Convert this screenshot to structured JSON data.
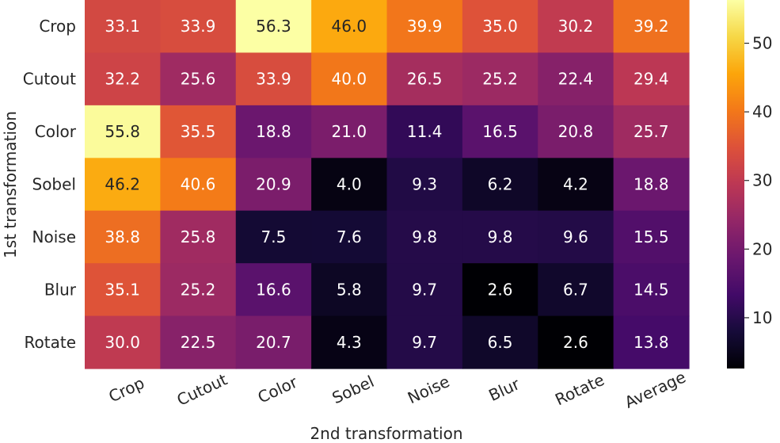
{
  "chart_data": {
    "type": "heatmap",
    "title": "",
    "xlabel": "2nd transformation",
    "ylabel": "1st transformation",
    "x_categories": [
      "Crop",
      "Cutout",
      "Color",
      "Sobel",
      "Noise",
      "Blur",
      "Rotate",
      "Average"
    ],
    "y_categories": [
      "Crop",
      "Cutout",
      "Color",
      "Sobel",
      "Noise",
      "Blur",
      "Rotate"
    ],
    "values": [
      [
        33.1,
        33.9,
        56.3,
        46.0,
        39.9,
        35.0,
        30.2,
        39.2
      ],
      [
        32.2,
        25.6,
        33.9,
        40.0,
        26.5,
        25.2,
        22.4,
        29.4
      ],
      [
        55.8,
        35.5,
        18.8,
        21.0,
        11.4,
        16.5,
        20.8,
        25.7
      ],
      [
        46.2,
        40.6,
        20.9,
        4.0,
        9.3,
        6.2,
        4.2,
        18.8
      ],
      [
        38.8,
        25.8,
        7.5,
        7.6,
        9.8,
        9.8,
        9.6,
        15.5
      ],
      [
        35.1,
        25.2,
        16.6,
        5.8,
        9.7,
        2.6,
        6.7,
        14.5
      ],
      [
        30.0,
        22.5,
        20.7,
        4.3,
        9.7,
        6.5,
        2.6,
        13.8
      ]
    ],
    "value_labels": [
      [
        "33.1",
        "33.9",
        "56.3",
        "46.0",
        "39.9",
        "35.0",
        "30.2",
        "39.2"
      ],
      [
        "32.2",
        "25.6",
        "33.9",
        "40.0",
        "26.5",
        "25.2",
        "22.4",
        "29.4"
      ],
      [
        "55.8",
        "35.5",
        "18.8",
        "21.0",
        "11.4",
        "16.5",
        "20.8",
        "25.7"
      ],
      [
        "46.2",
        "40.6",
        "20.9",
        "4.0",
        "9.3",
        "6.2",
        "4.2",
        "18.8"
      ],
      [
        "38.8",
        "25.8",
        "7.5",
        "7.6",
        "9.8",
        "9.8",
        "9.6",
        "15.5"
      ],
      [
        "35.1",
        "25.2",
        "16.6",
        "5.8",
        "9.7",
        "2.6",
        "6.7",
        "14.5"
      ],
      [
        "30.0",
        "22.5",
        "20.7",
        "4.3",
        "9.7",
        "6.5",
        "2.6",
        "13.8"
      ]
    ],
    "colormap": "inferno",
    "colorbar": {
      "range": [
        2.6,
        56.3
      ],
      "ticks": [
        10,
        20,
        30,
        40,
        50
      ],
      "tick_labels": [
        "10",
        "20",
        "30",
        "40",
        "50"
      ],
      "placement": "right"
    },
    "grid": false,
    "legend": "none"
  }
}
